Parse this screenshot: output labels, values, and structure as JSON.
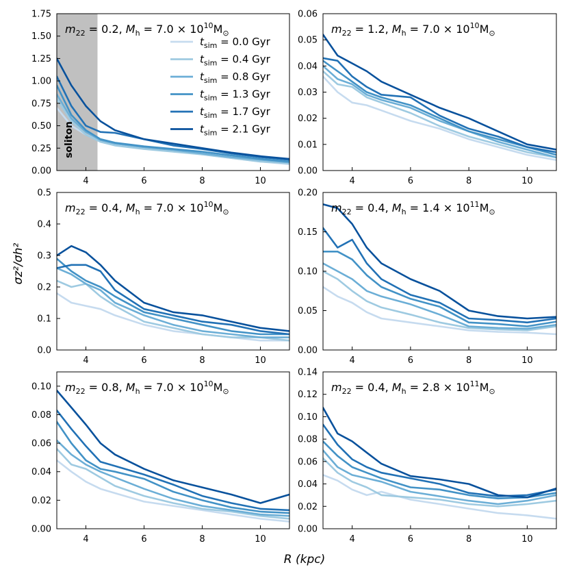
{
  "figure": {
    "xlabel": "R (kpc)",
    "ylabel": "σz²/σh²",
    "series_colors": [
      "#c6dbef",
      "#9ecae1",
      "#6baed6",
      "#4292c6",
      "#2171b5",
      "#08519c"
    ],
    "legend": {
      "location": "upper-right of top-left panel",
      "entries": [
        "t_sim = 0.0 Gyr",
        "t_sim = 0.4 Gyr",
        "t_sim = 0.8 Gyr",
        "t_sim = 1.3 Gyr",
        "t_sim = 1.7 Gyr",
        "t_sim = 2.1 Gyr"
      ]
    },
    "soliton_label": "soliton"
  },
  "chart_data": [
    {
      "type": "line",
      "title": "m22 = 0.2, Mh = 7.0 × 10^10 M⊙",
      "title_parts": {
        "m": "0.2",
        "mant": "7.0",
        "exp": "10"
      },
      "xlim": [
        3,
        11
      ],
      "ylim": [
        0,
        1.75
      ],
      "xticks": [
        4,
        6,
        8,
        10
      ],
      "yticks": [
        "0.00",
        "0.25",
        "0.50",
        "0.75",
        "1.00",
        "1.25",
        "1.50",
        "1.75"
      ],
      "shaded_region": {
        "label": "soliton",
        "x": [
          3,
          4.4
        ]
      },
      "x": [
        3,
        3.5,
        4,
        4.5,
        5,
        6,
        7,
        8,
        9,
        10,
        11
      ],
      "series": [
        {
          "name": "t_sim = 0.0 Gyr",
          "values": [
            0.7,
            0.5,
            0.4,
            0.33,
            0.3,
            0.26,
            0.22,
            0.18,
            0.14,
            0.1,
            0.07
          ]
        },
        {
          "name": "t_sim = 0.4 Gyr",
          "values": [
            0.8,
            0.55,
            0.4,
            0.32,
            0.28,
            0.24,
            0.21,
            0.18,
            0.14,
            0.1,
            0.08
          ]
        },
        {
          "name": "t_sim = 0.8 Gyr",
          "values": [
            0.85,
            0.58,
            0.43,
            0.34,
            0.3,
            0.26,
            0.23,
            0.19,
            0.15,
            0.12,
            0.09
          ]
        },
        {
          "name": "t_sim = 1.3 Gyr",
          "values": [
            0.95,
            0.62,
            0.45,
            0.35,
            0.31,
            0.27,
            0.24,
            0.21,
            0.17,
            0.13,
            0.1
          ]
        },
        {
          "name": "t_sim = 1.7 Gyr",
          "values": [
            1.05,
            0.72,
            0.5,
            0.43,
            0.42,
            0.35,
            0.28,
            0.24,
            0.19,
            0.15,
            0.12
          ]
        },
        {
          "name": "t_sim = 2.1 Gyr",
          "values": [
            1.25,
            0.95,
            0.72,
            0.55,
            0.45,
            0.35,
            0.3,
            0.25,
            0.2,
            0.16,
            0.13
          ]
        }
      ]
    },
    {
      "type": "line",
      "title": "m22 = 1.2, Mh = 7.0 × 10^10 M⊙",
      "title_parts": {
        "m": "1.2",
        "mant": "7.0",
        "exp": "10"
      },
      "xlim": [
        3,
        11
      ],
      "ylim": [
        0,
        0.06
      ],
      "xticks": [
        4,
        6,
        8,
        10
      ],
      "yticks": [
        "0.00",
        "0.01",
        "0.02",
        "0.03",
        "0.04",
        "0.05",
        "0.06"
      ],
      "x": [
        3,
        3.5,
        4,
        4.5,
        5,
        6,
        7,
        8,
        9,
        10,
        11
      ],
      "series": [
        {
          "name": "t_sim = 0.0 Gyr",
          "values": [
            0.036,
            0.03,
            0.026,
            0.025,
            0.023,
            0.019,
            0.016,
            0.012,
            0.009,
            0.006,
            0.004
          ]
        },
        {
          "name": "t_sim = 0.4 Gyr",
          "values": [
            0.038,
            0.033,
            0.032,
            0.028,
            0.026,
            0.022,
            0.017,
            0.013,
            0.01,
            0.007,
            0.005
          ]
        },
        {
          "name": "t_sim = 0.8 Gyr",
          "values": [
            0.04,
            0.035,
            0.033,
            0.029,
            0.027,
            0.024,
            0.019,
            0.015,
            0.011,
            0.008,
            0.005
          ]
        },
        {
          "name": "t_sim = 1.3 Gyr",
          "values": [
            0.042,
            0.038,
            0.034,
            0.03,
            0.028,
            0.025,
            0.02,
            0.015,
            0.012,
            0.009,
            0.006
          ]
        },
        {
          "name": "t_sim = 1.7 Gyr",
          "values": [
            0.043,
            0.042,
            0.036,
            0.032,
            0.029,
            0.028,
            0.021,
            0.016,
            0.013,
            0.009,
            0.007
          ]
        },
        {
          "name": "t_sim = 2.1 Gyr",
          "values": [
            0.052,
            0.044,
            0.041,
            0.038,
            0.034,
            0.029,
            0.024,
            0.02,
            0.015,
            0.01,
            0.008
          ]
        }
      ]
    },
    {
      "type": "line",
      "title": "m22 = 0.4, Mh = 7.0 × 10^10 M⊙",
      "title_parts": {
        "m": "0.4",
        "mant": "7.0",
        "exp": "10"
      },
      "xlim": [
        3,
        11
      ],
      "ylim": [
        0,
        0.5
      ],
      "xticks": [
        4,
        6,
        8,
        10
      ],
      "yticks": [
        "0.0",
        "0.1",
        "0.2",
        "0.3",
        "0.4",
        "0.5"
      ],
      "x": [
        3,
        3.5,
        4,
        4.5,
        5,
        6,
        7,
        8,
        9,
        10,
        11
      ],
      "series": [
        {
          "name": "t_sim = 0.0 Gyr",
          "values": [
            0.18,
            0.15,
            0.14,
            0.13,
            0.11,
            0.08,
            0.06,
            0.05,
            0.04,
            0.03,
            0.03
          ]
        },
        {
          "name": "t_sim = 0.4 Gyr",
          "values": [
            0.22,
            0.2,
            0.21,
            0.17,
            0.14,
            0.09,
            0.07,
            0.05,
            0.04,
            0.04,
            0.03
          ]
        },
        {
          "name": "t_sim = 0.8 Gyr",
          "values": [
            0.26,
            0.24,
            0.21,
            0.19,
            0.15,
            0.11,
            0.08,
            0.06,
            0.05,
            0.04,
            0.04
          ]
        },
        {
          "name": "t_sim = 1.3 Gyr",
          "values": [
            0.29,
            0.25,
            0.22,
            0.2,
            0.17,
            0.12,
            0.1,
            0.08,
            0.06,
            0.05,
            0.05
          ]
        },
        {
          "name": "t_sim = 1.7 Gyr",
          "values": [
            0.26,
            0.27,
            0.27,
            0.25,
            0.19,
            0.13,
            0.11,
            0.09,
            0.08,
            0.06,
            0.05
          ]
        },
        {
          "name": "t_sim = 2.1 Gyr",
          "values": [
            0.3,
            0.33,
            0.31,
            0.27,
            0.22,
            0.15,
            0.12,
            0.11,
            0.09,
            0.07,
            0.06
          ]
        }
      ]
    },
    {
      "type": "line",
      "title": "m22 = 0.4, Mh = 1.4 × 10^11 M⊙",
      "title_parts": {
        "m": "0.4",
        "mant": "1.4",
        "exp": "11"
      },
      "xlim": [
        3,
        11
      ],
      "ylim": [
        0,
        0.2
      ],
      "xticks": [
        4,
        6,
        8,
        10
      ],
      "yticks": [
        "0.00",
        "0.05",
        "0.10",
        "0.15",
        "0.20"
      ],
      "x": [
        3,
        3.5,
        4,
        4.5,
        5,
        6,
        7,
        8,
        9,
        10,
        11
      ],
      "series": [
        {
          "name": "t_sim = 0.0 Gyr",
          "values": [
            0.08,
            0.068,
            0.06,
            0.048,
            0.04,
            0.035,
            0.03,
            0.025,
            0.023,
            0.022,
            0.02
          ]
        },
        {
          "name": "t_sim = 0.4 Gyr",
          "values": [
            0.1,
            0.09,
            0.075,
            0.062,
            0.054,
            0.045,
            0.035,
            0.028,
            0.026,
            0.025,
            0.03
          ]
        },
        {
          "name": "t_sim = 0.8 Gyr",
          "values": [
            0.11,
            0.1,
            0.09,
            0.075,
            0.068,
            0.058,
            0.045,
            0.03,
            0.028,
            0.027,
            0.032
          ]
        },
        {
          "name": "t_sim = 1.3 Gyr",
          "values": [
            0.125,
            0.125,
            0.115,
            0.095,
            0.08,
            0.065,
            0.055,
            0.035,
            0.033,
            0.03,
            0.036
          ]
        },
        {
          "name": "t_sim = 1.7 Gyr",
          "values": [
            0.155,
            0.13,
            0.14,
            0.11,
            0.09,
            0.07,
            0.06,
            0.04,
            0.038,
            0.035,
            0.04
          ]
        },
        {
          "name": "t_sim = 2.1 Gyr",
          "values": [
            0.185,
            0.18,
            0.16,
            0.13,
            0.11,
            0.09,
            0.075,
            0.05,
            0.043,
            0.04,
            0.042
          ]
        }
      ]
    },
    {
      "type": "line",
      "title": "m22 = 0.8, Mh = 7.0 × 10^10 M⊙",
      "title_parts": {
        "m": "0.8",
        "mant": "7.0",
        "exp": "10"
      },
      "xlim": [
        3,
        11
      ],
      "ylim": [
        0,
        0.11
      ],
      "xticks": [
        4,
        6,
        8,
        10
      ],
      "yticks": [
        "0.00",
        "0.02",
        "0.04",
        "0.06",
        "0.08",
        "0.10"
      ],
      "x": [
        3,
        3.5,
        4,
        4.5,
        5,
        6,
        7,
        8,
        9,
        10,
        11
      ],
      "series": [
        {
          "name": "t_sim = 0.0 Gyr",
          "values": [
            0.048,
            0.04,
            0.033,
            0.028,
            0.025,
            0.019,
            0.016,
            0.013,
            0.01,
            0.007,
            0.005
          ]
        },
        {
          "name": "t_sim = 0.4 Gyr",
          "values": [
            0.056,
            0.045,
            0.042,
            0.036,
            0.03,
            0.023,
            0.018,
            0.014,
            0.012,
            0.009,
            0.007
          ]
        },
        {
          "name": "t_sim = 0.8 Gyr",
          "values": [
            0.062,
            0.052,
            0.045,
            0.04,
            0.036,
            0.028,
            0.021,
            0.016,
            0.013,
            0.01,
            0.009
          ]
        },
        {
          "name": "t_sim = 1.3 Gyr",
          "values": [
            0.075,
            0.06,
            0.048,
            0.042,
            0.04,
            0.035,
            0.026,
            0.02,
            0.015,
            0.012,
            0.011
          ]
        },
        {
          "name": "t_sim = 1.7 Gyr",
          "values": [
            0.083,
            0.07,
            0.058,
            0.047,
            0.044,
            0.038,
            0.031,
            0.023,
            0.018,
            0.014,
            0.013
          ]
        },
        {
          "name": "t_sim = 2.1 Gyr",
          "values": [
            0.097,
            0.085,
            0.073,
            0.06,
            0.052,
            0.042,
            0.034,
            0.029,
            0.024,
            0.018,
            0.024
          ]
        }
      ]
    },
    {
      "type": "line",
      "title": "m22 = 0.4, Mh = 2.8 × 10^11 M⊙",
      "title_parts": {
        "m": "0.4",
        "mant": "2.8",
        "exp": "11"
      },
      "xlim": [
        3,
        11
      ],
      "ylim": [
        0,
        0.14
      ],
      "xticks": [
        4,
        6,
        8,
        10
      ],
      "yticks": [
        "0.00",
        "0.02",
        "0.04",
        "0.06",
        "0.08",
        "0.10",
        "0.12",
        "0.14"
      ],
      "x": [
        3,
        3.5,
        4,
        4.5,
        5,
        6,
        7,
        8,
        9,
        10,
        11
      ],
      "series": [
        {
          "name": "t_sim = 0.0 Gyr",
          "values": [
            0.048,
            0.043,
            0.035,
            0.03,
            0.033,
            0.026,
            0.022,
            0.018,
            0.014,
            0.012,
            0.009
          ]
        },
        {
          "name": "t_sim = 0.4 Gyr",
          "values": [
            0.063,
            0.05,
            0.042,
            0.037,
            0.03,
            0.028,
            0.026,
            0.022,
            0.02,
            0.022,
            0.025
          ]
        },
        {
          "name": "t_sim = 0.8 Gyr",
          "values": [
            0.07,
            0.055,
            0.048,
            0.045,
            0.042,
            0.033,
            0.029,
            0.025,
            0.022,
            0.025,
            0.03
          ]
        },
        {
          "name": "t_sim = 1.3 Gyr",
          "values": [
            0.078,
            0.065,
            0.055,
            0.05,
            0.045,
            0.037,
            0.035,
            0.03,
            0.027,
            0.028,
            0.032
          ]
        },
        {
          "name": "t_sim = 1.7 Gyr",
          "values": [
            0.093,
            0.075,
            0.062,
            0.055,
            0.05,
            0.045,
            0.04,
            0.032,
            0.029,
            0.03,
            0.035
          ]
        },
        {
          "name": "t_sim = 2.1 Gyr",
          "values": [
            0.108,
            0.085,
            0.078,
            0.068,
            0.058,
            0.047,
            0.044,
            0.04,
            0.03,
            0.028,
            0.036
          ]
        }
      ]
    }
  ]
}
